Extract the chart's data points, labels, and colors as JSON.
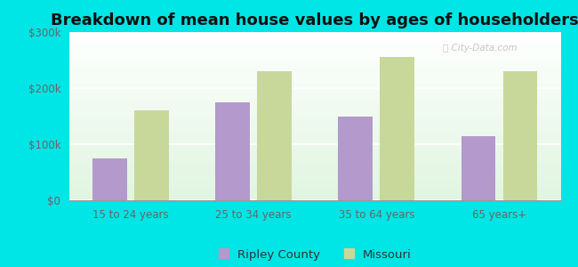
{
  "title": "Breakdown of mean house values by ages of householders",
  "categories": [
    "15 to 24 years",
    "25 to 34 years",
    "35 to 64 years",
    "65 years+"
  ],
  "ripley_values": [
    75000,
    175000,
    150000,
    115000
  ],
  "missouri_values": [
    160000,
    230000,
    255000,
    230000
  ],
  "ripley_color": "#b399cc",
  "missouri_color": "#c8d89a",
  "background_color": "#00e5e5",
  "ylim": [
    0,
    300000
  ],
  "yticks": [
    0,
    100000,
    200000,
    300000
  ],
  "ytick_labels": [
    "$0",
    "$100k",
    "$200k",
    "$300k"
  ],
  "legend_ripley": "Ripley County",
  "legend_missouri": "Missouri",
  "bar_width": 0.28,
  "title_fontsize": 13,
  "tick_fontsize": 8.5,
  "legend_fontsize": 9.5
}
